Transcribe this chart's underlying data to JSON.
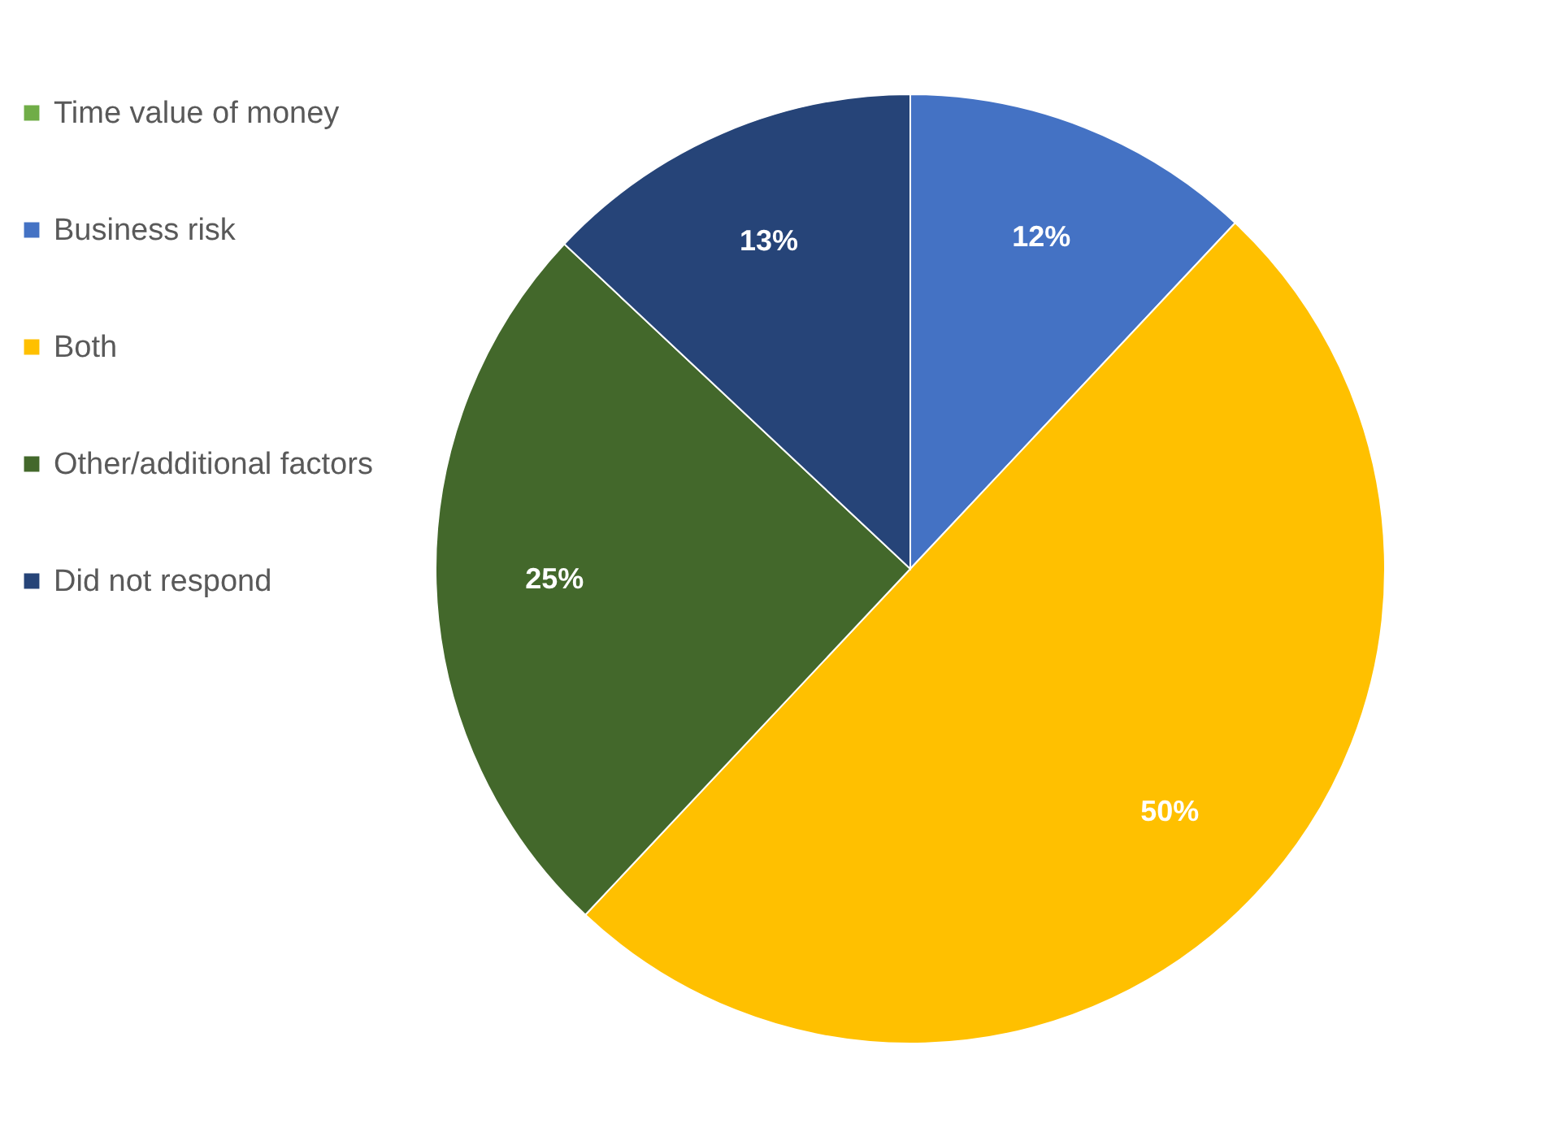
{
  "chart_data": {
    "type": "pie",
    "categories": [
      "Time value of money",
      "Business risk",
      "Both",
      "Other/additional factors",
      "Did not respond"
    ],
    "values": [
      0,
      12,
      50,
      25,
      13
    ],
    "colors": [
      "#70ad47",
      "#4472c4",
      "#ffc000",
      "#43682b",
      "#264478"
    ],
    "value_labels": [
      null,
      "12%",
      "50%",
      "25%",
      "13%"
    ],
    "legend": "left"
  }
}
